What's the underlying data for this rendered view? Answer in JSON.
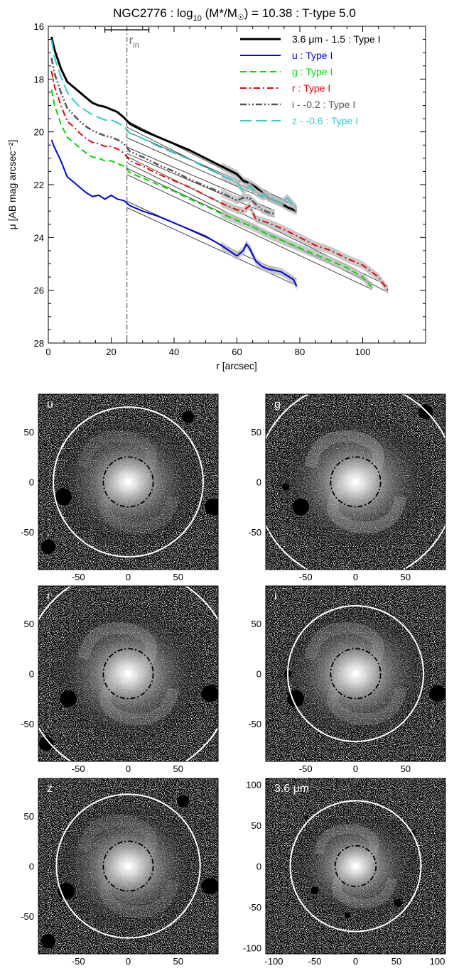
{
  "chart_data": [
    {
      "type": "line",
      "title_text": "NGC2776 : log",
      "title_sub": "10",
      "title_rest": " (M*/M",
      "title_sun": "☉",
      "title_end": ") = 10.38 : T-type 5.0",
      "xlabel": "r [arcsec]",
      "ylabel": "μ [AB mag arcsec⁻²]",
      "xlim": [
        0,
        120
      ],
      "ylim": [
        28,
        16
      ],
      "y_inverted": true,
      "xticks": [
        0,
        20,
        40,
        60,
        80,
        100
      ],
      "yticks": [
        16,
        18,
        20,
        22,
        24,
        26,
        28
      ],
      "grid": false,
      "legend_position": "top-right",
      "marker": {
        "label_main": "r",
        "label_sub": "in",
        "x": 25,
        "error_range": [
          18,
          32
        ]
      },
      "series": [
        {
          "name": "3.6 μm - 1.5 : Type I",
          "color": "#000000",
          "dash": "none",
          "width": 3,
          "x": [
            1,
            2,
            4,
            6,
            8,
            10,
            12,
            14,
            16,
            18,
            20,
            22,
            24,
            26,
            30,
            35,
            40,
            45,
            50,
            55,
            60,
            62,
            64,
            66,
            68,
            70,
            72,
            74,
            76,
            79
          ],
          "y": [
            16.4,
            16.9,
            17.6,
            18.1,
            18.3,
            18.5,
            18.7,
            18.9,
            19.0,
            19.05,
            19.15,
            19.25,
            19.45,
            19.7,
            19.95,
            20.2,
            20.45,
            20.7,
            21.0,
            21.3,
            21.6,
            21.85,
            21.95,
            22.1,
            22.3,
            22.5,
            22.6,
            22.7,
            22.85,
            23.0
          ],
          "fit": [
            [
              25,
              19.7
            ],
            [
              79,
              22.95
            ]
          ]
        },
        {
          "name": "u : Type I",
          "color": "#0000ee",
          "dash": "none",
          "width": 2,
          "x": [
            1,
            2,
            4,
            6,
            8,
            10,
            12,
            14,
            16,
            18,
            20,
            22,
            24,
            26,
            30,
            35,
            40,
            45,
            50,
            55,
            60,
            62,
            63,
            64,
            66,
            68,
            70,
            72,
            74,
            76,
            78,
            79
          ],
          "y": [
            20.3,
            20.6,
            21.1,
            21.7,
            21.9,
            22.1,
            22.3,
            22.45,
            22.4,
            22.55,
            22.4,
            22.55,
            22.6,
            22.8,
            23.0,
            23.2,
            23.45,
            23.7,
            23.95,
            24.3,
            24.7,
            24.5,
            24.25,
            24.4,
            24.9,
            25.1,
            25.2,
            25.25,
            25.3,
            25.45,
            25.6,
            25.85
          ],
          "fit": [
            [
              25,
              22.75
            ],
            [
              79,
              25.7
            ]
          ]
        },
        {
          "name": "g : Type I",
          "color": "#00dd00",
          "dash": "dashed",
          "width": 2,
          "x": [
            1,
            2,
            4,
            6,
            8,
            10,
            12,
            14,
            16,
            18,
            20,
            22,
            24,
            26,
            30,
            35,
            40,
            45,
            50,
            55,
            60,
            65,
            70,
            75,
            80,
            85,
            90,
            95,
            100,
            103
          ],
          "y": [
            18.4,
            19.0,
            19.7,
            20.2,
            20.4,
            20.6,
            20.8,
            20.95,
            21.0,
            21.1,
            21.1,
            21.2,
            21.3,
            21.55,
            21.75,
            22.0,
            22.25,
            22.55,
            22.8,
            23.1,
            23.35,
            23.6,
            23.9,
            24.15,
            24.4,
            24.65,
            24.9,
            25.15,
            25.5,
            25.9
          ],
          "fit": [
            [
              25,
              21.5
            ],
            [
              103,
              25.85
            ]
          ]
        },
        {
          "name": "r : Type I",
          "color": "#ee0000",
          "dash": "dashdot",
          "width": 2,
          "x": [
            1,
            2,
            4,
            6,
            8,
            10,
            12,
            14,
            16,
            18,
            20,
            22,
            24,
            26,
            30,
            35,
            40,
            45,
            50,
            55,
            60,
            62,
            64,
            66,
            70,
            75,
            80,
            85,
            90,
            95,
            100,
            105,
            108
          ],
          "y": [
            17.7,
            18.3,
            19.0,
            19.6,
            19.8,
            20.05,
            20.25,
            20.4,
            20.45,
            20.55,
            20.55,
            20.65,
            20.8,
            21.1,
            21.3,
            21.6,
            21.85,
            22.1,
            22.4,
            22.7,
            22.95,
            23.0,
            22.8,
            23.3,
            23.45,
            23.7,
            24.0,
            24.3,
            24.5,
            24.8,
            25.05,
            25.5,
            26.0
          ],
          "fit": [
            [
              25,
              21.05
            ],
            [
              108,
              25.95
            ]
          ]
        },
        {
          "name": "i - -0.2 : Type I",
          "color": "#555555",
          "dash": "dashdotdot",
          "width": 2.5,
          "x": [
            1,
            2,
            4,
            6,
            8,
            10,
            12,
            14,
            16,
            18,
            20,
            22,
            24,
            26,
            30,
            35,
            40,
            45,
            50,
            55,
            60,
            62,
            64,
            66,
            68,
            70,
            72
          ],
          "y": [
            17.2,
            17.8,
            18.5,
            19.1,
            19.35,
            19.6,
            19.8,
            19.95,
            20.05,
            20.15,
            20.2,
            20.3,
            20.45,
            20.75,
            20.95,
            21.25,
            21.5,
            21.8,
            22.05,
            22.3,
            22.6,
            22.5,
            22.5,
            22.75,
            22.95,
            23.05,
            23.1
          ],
          "fit": [
            [
              25,
              20.7
            ],
            [
              72,
              23.1
            ]
          ]
        },
        {
          "name": "z - -0.6 : Type I",
          "color": "#33cccc",
          "dash": "longdash",
          "width": 2,
          "x": [
            1,
            2,
            4,
            6,
            8,
            10,
            12,
            14,
            16,
            18,
            20,
            22,
            24,
            26,
            30,
            35,
            40,
            45,
            50,
            55,
            60,
            62,
            64,
            66,
            68,
            70,
            72,
            74,
            76,
            79
          ],
          "y": [
            16.5,
            17.2,
            17.9,
            18.5,
            18.8,
            19.05,
            19.2,
            19.35,
            19.45,
            19.55,
            19.55,
            19.65,
            19.8,
            20.05,
            20.25,
            20.55,
            20.8,
            21.05,
            21.35,
            21.65,
            21.9,
            22.25,
            22.05,
            22.3,
            22.45,
            22.4,
            22.6,
            22.7,
            22.5,
            22.9
          ],
          "fit": [
            [
              25,
              20.1
            ],
            [
              79,
              22.95
            ]
          ]
        }
      ]
    },
    {
      "type": "image-grid",
      "panels": [
        {
          "label": "u",
          "xticks": [
            -50,
            0,
            50
          ],
          "yticks": [
            50,
            0,
            -50
          ],
          "extent": 90,
          "outer_radius": 75,
          "inner_radius": 25,
          "spiral": 0.6
        },
        {
          "label": "g",
          "xticks": [
            -50,
            0,
            50
          ],
          "yticks": [
            50,
            0,
            -50
          ],
          "extent": 90,
          "outer_radius": 100,
          "inner_radius": 25,
          "spiral": 1.0
        },
        {
          "label": "r",
          "xticks": [
            -50,
            0,
            50
          ],
          "yticks": [
            50,
            0,
            -50
          ],
          "extent": 90,
          "outer_radius": 105,
          "inner_radius": 25,
          "spiral": 0.9
        },
        {
          "label": "i",
          "xticks": [
            -50,
            0,
            50
          ],
          "yticks": [
            50,
            0,
            -50
          ],
          "extent": 90,
          "outer_radius": 68,
          "inner_radius": 25,
          "spiral": 0.8
        },
        {
          "label": "z",
          "xticks": [
            -50,
            0,
            50
          ],
          "yticks": [
            50,
            0,
            -50
          ],
          "extent": 90,
          "outer_radius": 72,
          "inner_radius": 25,
          "spiral": 0.6
        },
        {
          "label": "3.6 μm",
          "xticks": [
            -100,
            -50,
            0,
            50,
            100
          ],
          "yticks": [
            100,
            50,
            0,
            -50,
            -100
          ],
          "extent": 110,
          "outer_radius": 80,
          "inner_radius": 25,
          "spiral": 0.9
        }
      ]
    }
  ]
}
